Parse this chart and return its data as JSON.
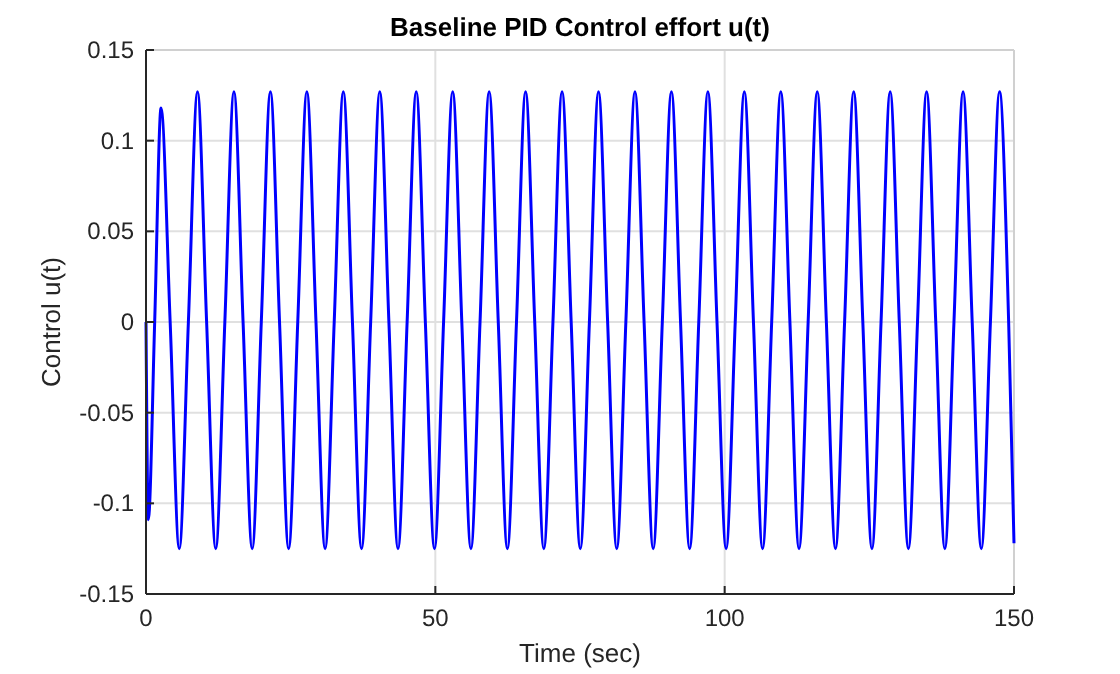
{
  "chart_data": {
    "type": "line",
    "title": "Baseline PID Control effort u(t)",
    "xlabel": "Time (sec)",
    "ylabel": "Control u(t)",
    "xlim": [
      0,
      150
    ],
    "xticks": [
      0,
      50,
      100,
      150
    ],
    "ylim": [
      -0.15,
      0.15
    ],
    "yticks": [
      -0.15,
      -0.1,
      -0.05,
      0,
      0.05,
      0.1,
      0.15
    ],
    "grid": true,
    "series": [
      {
        "color": "#0000ff",
        "x": [
          0,
          0.4,
          1.5,
          2.6,
          4.175,
          5.75,
          7.325,
          8.9,
          10.475,
          12.05,
          13.625,
          15.2,
          16.775,
          18.35,
          19.925,
          21.5,
          23.075,
          24.65,
          26.225,
          27.8,
          29.375,
          30.95,
          32.525,
          34.1,
          35.675,
          37.25,
          38.825,
          40.4,
          41.975,
          43.55,
          45.125,
          46.7,
          48.275,
          49.85,
          51.425,
          53.0,
          54.575,
          56.15,
          57.725,
          59.3,
          60.875,
          62.45,
          64.025,
          65.6,
          67.175,
          68.75,
          70.325,
          71.9,
          73.475,
          75.05,
          76.625,
          78.2,
          79.775,
          81.35,
          82.925,
          84.5,
          86.075,
          87.65,
          89.225,
          90.8,
          92.375,
          93.95,
          95.525,
          97.1,
          98.675,
          100.25,
          101.825,
          103.4,
          104.975,
          106.55,
          108.125,
          109.7,
          111.275,
          112.85,
          114.425,
          116.0,
          117.575,
          119.15,
          120.725,
          122.3,
          123.875,
          125.45,
          127.025,
          128.6,
          130.175,
          131.75,
          133.325,
          134.9,
          136.475,
          138.05,
          139.625,
          141.2,
          142.775,
          144.35,
          145.925,
          147.5,
          149.075,
          150
        ],
        "values": [
          0,
          -0.109,
          0,
          0.118,
          0,
          -0.125,
          0,
          0.127,
          0,
          -0.125,
          0,
          0.127,
          0,
          -0.125,
          0,
          0.127,
          0,
          -0.125,
          0,
          0.127,
          0,
          -0.125,
          0,
          0.127,
          0,
          -0.125,
          0,
          0.127,
          0,
          -0.125,
          0,
          0.127,
          0,
          -0.125,
          0,
          0.127,
          0,
          -0.125,
          0,
          0.127,
          0,
          -0.125,
          0,
          0.127,
          0,
          -0.125,
          0,
          0.127,
          0,
          -0.125,
          0,
          0.127,
          0,
          -0.125,
          0,
          0.127,
          0,
          -0.125,
          0,
          0.127,
          0,
          -0.125,
          0,
          0.127,
          0,
          -0.125,
          0,
          0.127,
          0,
          -0.125,
          0,
          0.127,
          0,
          -0.125,
          0,
          0.127,
          0,
          -0.125,
          0,
          0.127,
          0,
          -0.125,
          0,
          0.127,
          0,
          -0.125,
          0,
          0.127,
          0,
          -0.125,
          0,
          0.127,
          0,
          -0.125,
          0,
          0.127,
          0,
          -0.122
        ]
      }
    ]
  }
}
